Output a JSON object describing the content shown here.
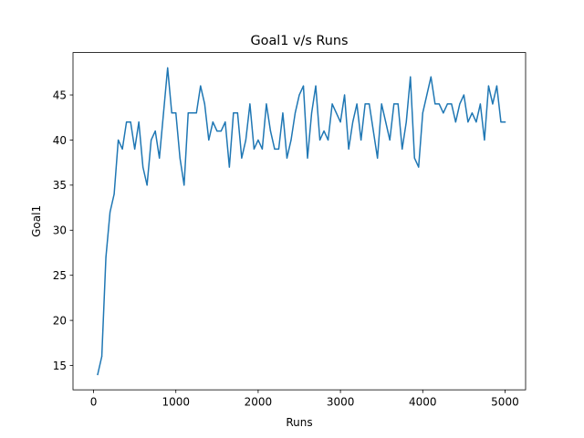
{
  "chart_data": {
    "type": "line",
    "title": "Goal1 v/s Runs",
    "xlabel": "Runs",
    "ylabel": "Goal1",
    "xlim": [
      -250,
      5250
    ],
    "ylim": [
      12.3,
      49.7
    ],
    "xticks": [
      0,
      1000,
      2000,
      3000,
      4000,
      5000
    ],
    "yticks": [
      15,
      20,
      25,
      30,
      35,
      40,
      45
    ],
    "grid": false,
    "line_color": "#1f77b4",
    "series": [
      {
        "x": [
          50,
          100,
          150,
          200,
          250,
          300,
          350,
          400,
          450,
          500,
          550,
          600,
          650,
          700,
          750,
          800,
          850,
          900,
          950,
          1000,
          1050,
          1100,
          1150,
          1200,
          1250,
          1300,
          1350,
          1400,
          1450,
          1500,
          1550,
          1600,
          1650,
          1700,
          1750,
          1800,
          1850,
          1900,
          1950,
          2000,
          2050,
          2100,
          2150,
          2200,
          2250,
          2300,
          2350,
          2400,
          2450,
          2500,
          2550,
          2600,
          2650,
          2700,
          2750,
          2800,
          2850,
          2900,
          2950,
          3000,
          3050,
          3100,
          3150,
          3200,
          3250,
          3300,
          3350,
          3400,
          3450,
          3500,
          3550,
          3600,
          3650,
          3700,
          3750,
          3800,
          3850,
          3900,
          3950,
          4000,
          4050,
          4100,
          4150,
          4200,
          4250,
          4300,
          4350,
          4400,
          4450,
          4500,
          4550,
          4600,
          4650,
          4700,
          4750,
          4800,
          4850,
          4900,
          4950,
          5000
        ],
        "values": [
          14,
          16,
          27,
          32,
          34,
          40,
          39,
          42,
          42,
          39,
          42,
          37,
          35,
          40,
          41,
          38,
          43,
          48,
          43,
          43,
          38,
          35,
          43,
          43,
          43,
          46,
          44,
          40,
          42,
          41,
          41,
          42,
          37,
          43,
          43,
          38,
          40,
          44,
          39,
          40,
          39,
          44,
          41,
          39,
          39,
          43,
          38,
          40,
          43,
          45,
          46,
          38,
          43,
          46,
          40,
          41,
          40,
          44,
          43,
          42,
          45,
          39,
          42,
          44,
          40,
          44,
          44,
          41,
          38,
          44,
          42,
          40,
          44,
          44,
          39,
          42,
          47,
          38,
          37,
          43,
          45,
          47,
          44,
          44,
          43,
          44,
          44,
          42,
          44,
          45,
          42,
          43,
          42,
          44,
          40,
          46,
          44,
          46,
          42,
          42
        ]
      }
    ]
  }
}
